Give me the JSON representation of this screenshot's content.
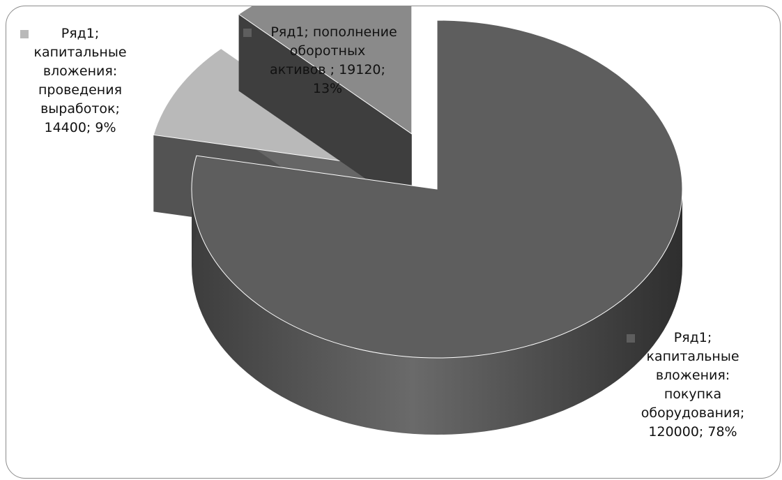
{
  "chart_data": {
    "type": "pie",
    "style": "3d-exploded",
    "series_name": "Ряд1",
    "slices": [
      {
        "category": "капитальные вложения: покупка оборудования",
        "value": 120000,
        "percent": 78,
        "color": "#5e5e5e",
        "label_lines": [
          "Ряд1;",
          "капитальные",
          "вложения:",
          "покупка",
          "оборудования;",
          "120000; 78%"
        ]
      },
      {
        "category": "капитальные вложения: проведения выработок",
        "value": 14400,
        "percent": 9,
        "color": "#b9b9b9",
        "label_lines": [
          "Ряд1;",
          "капитальные",
          "вложения:",
          "проведения",
          "выработок;",
          "14400; 9%"
        ]
      },
      {
        "category": "пополнение оборотных активов",
        "value": 19120,
        "percent": 13,
        "color": "#8a8a8a",
        "label_lines": [
          "Ряд1; пополнение",
          "оборотных",
          "активов ; 19120;",
          "13%"
        ]
      }
    ],
    "legend": "none",
    "grid": false
  }
}
